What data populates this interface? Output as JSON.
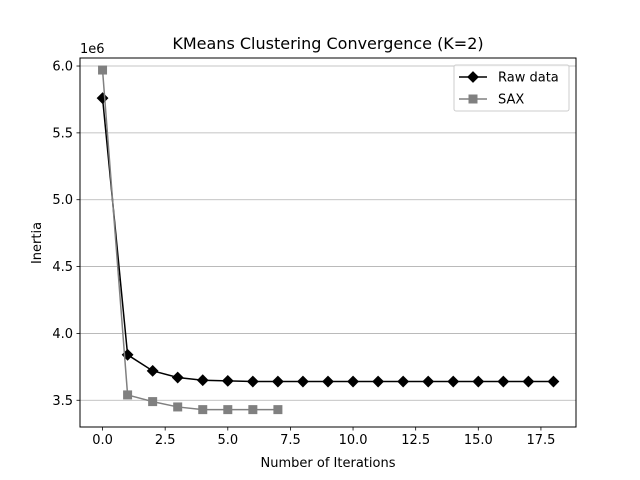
{
  "chart_data": {
    "type": "line",
    "title": "KMeans Clustering Convergence (K=2)",
    "xlabel": "Number of Iterations",
    "ylabel": "Inertia",
    "y_offset_label": "1e6",
    "xlim": [
      -0.9,
      18.9
    ],
    "ylim": [
      3.3,
      6.06
    ],
    "x_ticks": [
      0.0,
      2.5,
      5.0,
      7.5,
      10.0,
      12.5,
      15.0,
      17.5
    ],
    "x_tick_labels": [
      "0.0",
      "2.5",
      "5.0",
      "7.5",
      "10.0",
      "12.5",
      "15.0",
      "17.5"
    ],
    "y_ticks": [
      3.5,
      4.0,
      4.5,
      5.0,
      5.5,
      6.0
    ],
    "y_tick_labels": [
      "3.5",
      "4.0",
      "4.5",
      "5.0",
      "5.5",
      "6.0"
    ],
    "y_grid": true,
    "x_grid": false,
    "legend_position": "top-right",
    "series": [
      {
        "name": "Raw data",
        "color": "#000000",
        "marker": "diamond",
        "x": [
          0,
          1,
          2,
          3,
          4,
          5,
          6,
          7,
          8,
          9,
          10,
          11,
          12,
          13,
          14,
          15,
          16,
          17,
          18
        ],
        "y": [
          5.76,
          3.84,
          3.72,
          3.67,
          3.65,
          3.645,
          3.64,
          3.64,
          3.64,
          3.64,
          3.64,
          3.64,
          3.64,
          3.64,
          3.64,
          3.64,
          3.64,
          3.64,
          3.64
        ]
      },
      {
        "name": "SAX",
        "color": "#808080",
        "marker": "square",
        "x": [
          0,
          1,
          2,
          3,
          4,
          5,
          6,
          7
        ],
        "y": [
          5.97,
          3.54,
          3.49,
          3.45,
          3.43,
          3.43,
          3.43,
          3.43
        ]
      }
    ]
  }
}
